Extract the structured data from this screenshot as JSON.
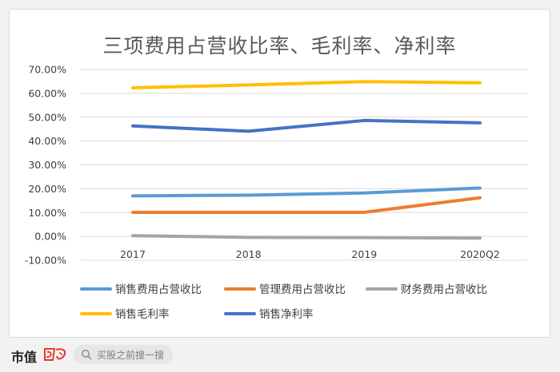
{
  "chart_data": {
    "type": "line",
    "title": "三项费用占营收比率、毛利率、净利率",
    "categories": [
      "2017",
      "2018",
      "2019",
      "2020Q2"
    ],
    "ylim": [
      -10,
      70
    ],
    "ytick_values": [
      -10,
      0,
      10,
      20,
      30,
      40,
      50,
      60,
      70
    ],
    "ytick_labels": [
      "-10.00%",
      "0.00%",
      "10.00%",
      "20.00%",
      "30.00%",
      "40.00%",
      "50.00%",
      "60.00%",
      "70.00%"
    ],
    "grid": true,
    "legend_position": "bottom",
    "series": [
      {
        "name": "销售费用占营收比",
        "color": "#5b9bd5",
        "values": [
          17.0,
          17.3,
          18.2,
          20.3
        ]
      },
      {
        "name": "管理费用占营收比",
        "color": "#ed7d31",
        "values": [
          10.1,
          10.1,
          10.1,
          16.2
        ]
      },
      {
        "name": "财务费用占营收比",
        "color": "#a5a5a5",
        "values": [
          0.3,
          -0.4,
          -0.5,
          -0.7
        ]
      },
      {
        "name": "销售毛利率",
        "color": "#ffc000",
        "values": [
          62.3,
          63.5,
          64.9,
          64.4
        ]
      },
      {
        "name": "销售净利率",
        "color": "#4472c4",
        "values": [
          46.3,
          44.1,
          48.6,
          47.6
        ]
      }
    ]
  },
  "footer": {
    "brand": "市值",
    "logo_icon": "brand-wind-logo",
    "search_icon": "search-icon",
    "search_text": "买股之前搜一搜"
  }
}
